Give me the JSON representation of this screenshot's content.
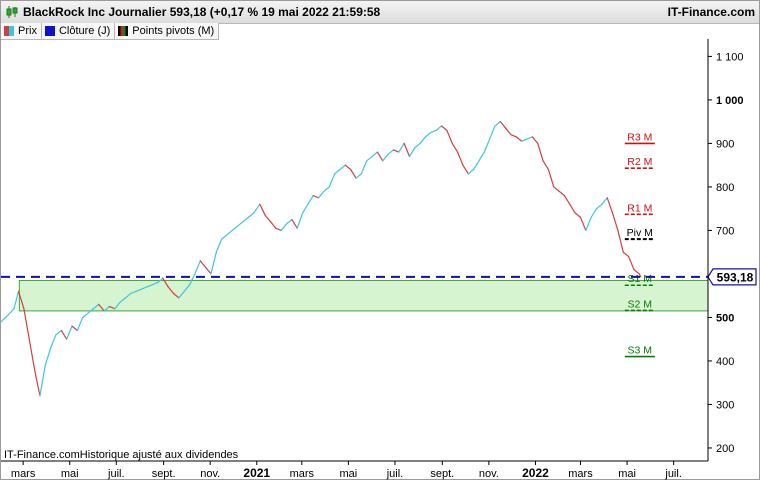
{
  "header": {
    "title": "BlackRock Inc Journalier 593,18 (+0,17 % 19 mai 2022 21:59:58",
    "brand": "IT-Finance.com",
    "icon": "candlestick-icon"
  },
  "legend": [
    {
      "label": "Prix",
      "swatch": "price-swatch"
    },
    {
      "label": "Clôture (J)",
      "swatch": "close-swatch"
    },
    {
      "label": "Points pivots (M)",
      "swatch": "pivot-swatch"
    }
  ],
  "footer": {
    "text": "IT-Finance.comHistorique ajusté aux dividendes"
  },
  "colors": {
    "price_up": "#3cc6e0",
    "price_down": "#d04040",
    "close_line": "#1010b0",
    "resistance": "#cc1111",
    "pivot": "#000000",
    "support": "#0a7a0a",
    "zone_fill": "#c8f0c0",
    "zone_border": "#3aa83a"
  },
  "chart_data": {
    "type": "line",
    "title": "BlackRock Inc Journalier",
    "ylim": [
      170,
      1140
    ],
    "y_ticks": [
      {
        "value": 1100,
        "label": "1 100",
        "bold": false
      },
      {
        "value": 1000,
        "label": "1 000",
        "bold": true
      },
      {
        "value": 900,
        "label": "900",
        "bold": false
      },
      {
        "value": 800,
        "label": "800",
        "bold": false
      },
      {
        "value": 700,
        "label": "700",
        "bold": false
      },
      {
        "value": 500,
        "label": "500",
        "bold": true
      },
      {
        "value": 400,
        "label": "400",
        "bold": false
      },
      {
        "value": 300,
        "label": "300",
        "bold": false
      },
      {
        "value": 200,
        "label": "200",
        "bold": false
      }
    ],
    "x_range": [
      "2020-02-01",
      "2022-08-15"
    ],
    "x_ticks": [
      {
        "date": "2020-03-01",
        "label": "mars",
        "bold": false
      },
      {
        "date": "2020-05-01",
        "label": "mai",
        "bold": false
      },
      {
        "date": "2020-07-01",
        "label": "juil.",
        "bold": false
      },
      {
        "date": "2020-09-01",
        "label": "sept.",
        "bold": false
      },
      {
        "date": "2020-11-01",
        "label": "nov.",
        "bold": false
      },
      {
        "date": "2021-01-01",
        "label": "2021",
        "bold": true
      },
      {
        "date": "2021-03-01",
        "label": "mars",
        "bold": false
      },
      {
        "date": "2021-05-01",
        "label": "mai",
        "bold": false
      },
      {
        "date": "2021-07-01",
        "label": "juil.",
        "bold": false
      },
      {
        "date": "2021-09-01",
        "label": "sept.",
        "bold": false
      },
      {
        "date": "2021-11-01",
        "label": "nov.",
        "bold": false
      },
      {
        "date": "2022-01-01",
        "label": "2022",
        "bold": true
      },
      {
        "date": "2022-03-01",
        "label": "mars",
        "bold": false
      },
      {
        "date": "2022-05-01",
        "label": "mai",
        "bold": false
      },
      {
        "date": "2022-07-01",
        "label": "juil.",
        "bold": false
      }
    ],
    "series": [
      {
        "name": "Prix",
        "points": [
          [
            "2020-02-01",
            490
          ],
          [
            "2020-02-10",
            505
          ],
          [
            "2020-02-18",
            520
          ],
          [
            "2020-02-24",
            560
          ],
          [
            "2020-03-02",
            520
          ],
          [
            "2020-03-09",
            450
          ],
          [
            "2020-03-16",
            380
          ],
          [
            "2020-03-23",
            320
          ],
          [
            "2020-03-30",
            390
          ],
          [
            "2020-04-06",
            430
          ],
          [
            "2020-04-13",
            460
          ],
          [
            "2020-04-20",
            470
          ],
          [
            "2020-04-27",
            450
          ],
          [
            "2020-05-04",
            480
          ],
          [
            "2020-05-11",
            470
          ],
          [
            "2020-05-18",
            500
          ],
          [
            "2020-05-25",
            510
          ],
          [
            "2020-06-01",
            520
          ],
          [
            "2020-06-08",
            530
          ],
          [
            "2020-06-15",
            515
          ],
          [
            "2020-06-22",
            525
          ],
          [
            "2020-06-29",
            520
          ],
          [
            "2020-07-06",
            535
          ],
          [
            "2020-07-13",
            545
          ],
          [
            "2020-07-20",
            555
          ],
          [
            "2020-07-27",
            560
          ],
          [
            "2020-08-03",
            565
          ],
          [
            "2020-08-10",
            570
          ],
          [
            "2020-08-17",
            575
          ],
          [
            "2020-08-24",
            580
          ],
          [
            "2020-08-31",
            590
          ],
          [
            "2020-09-07",
            570
          ],
          [
            "2020-09-14",
            555
          ],
          [
            "2020-09-21",
            545
          ],
          [
            "2020-09-28",
            560
          ],
          [
            "2020-10-05",
            575
          ],
          [
            "2020-10-12",
            600
          ],
          [
            "2020-10-19",
            630
          ],
          [
            "2020-10-26",
            615
          ],
          [
            "2020-11-02",
            600
          ],
          [
            "2020-11-09",
            650
          ],
          [
            "2020-11-16",
            680
          ],
          [
            "2020-11-23",
            690
          ],
          [
            "2020-11-30",
            700
          ],
          [
            "2020-12-07",
            710
          ],
          [
            "2020-12-14",
            720
          ],
          [
            "2020-12-21",
            730
          ],
          [
            "2020-12-28",
            740
          ],
          [
            "2021-01-05",
            760
          ],
          [
            "2021-01-12",
            735
          ],
          [
            "2021-01-19",
            720
          ],
          [
            "2021-01-26",
            705
          ],
          [
            "2021-02-02",
            700
          ],
          [
            "2021-02-09",
            715
          ],
          [
            "2021-02-16",
            725
          ],
          [
            "2021-02-23",
            705
          ],
          [
            "2021-03-02",
            740
          ],
          [
            "2021-03-09",
            760
          ],
          [
            "2021-03-16",
            780
          ],
          [
            "2021-03-23",
            775
          ],
          [
            "2021-03-30",
            790
          ],
          [
            "2021-04-06",
            800
          ],
          [
            "2021-04-13",
            830
          ],
          [
            "2021-04-20",
            840
          ],
          [
            "2021-04-27",
            850
          ],
          [
            "2021-05-04",
            840
          ],
          [
            "2021-05-11",
            820
          ],
          [
            "2021-05-18",
            830
          ],
          [
            "2021-05-25",
            860
          ],
          [
            "2021-06-01",
            870
          ],
          [
            "2021-06-08",
            880
          ],
          [
            "2021-06-15",
            860
          ],
          [
            "2021-06-22",
            875
          ],
          [
            "2021-06-29",
            885
          ],
          [
            "2021-07-06",
            880
          ],
          [
            "2021-07-13",
            900
          ],
          [
            "2021-07-20",
            870
          ],
          [
            "2021-07-27",
            890
          ],
          [
            "2021-08-03",
            900
          ],
          [
            "2021-08-10",
            915
          ],
          [
            "2021-08-17",
            925
          ],
          [
            "2021-08-24",
            930
          ],
          [
            "2021-08-31",
            940
          ],
          [
            "2021-09-07",
            930
          ],
          [
            "2021-09-14",
            900
          ],
          [
            "2021-09-21",
            880
          ],
          [
            "2021-09-28",
            850
          ],
          [
            "2021-10-05",
            830
          ],
          [
            "2021-10-12",
            840
          ],
          [
            "2021-10-19",
            860
          ],
          [
            "2021-10-26",
            880
          ],
          [
            "2021-11-02",
            910
          ],
          [
            "2021-11-09",
            940
          ],
          [
            "2021-11-16",
            950
          ],
          [
            "2021-11-23",
            935
          ],
          [
            "2021-11-30",
            920
          ],
          [
            "2021-12-07",
            915
          ],
          [
            "2021-12-14",
            905
          ],
          [
            "2021-12-21",
            910
          ],
          [
            "2021-12-28",
            915
          ],
          [
            "2022-01-04",
            900
          ],
          [
            "2022-01-11",
            860
          ],
          [
            "2022-01-18",
            840
          ],
          [
            "2022-01-25",
            800
          ],
          [
            "2022-02-01",
            790
          ],
          [
            "2022-02-08",
            780
          ],
          [
            "2022-02-15",
            760
          ],
          [
            "2022-02-22",
            740
          ],
          [
            "2022-03-01",
            730
          ],
          [
            "2022-03-08",
            700
          ],
          [
            "2022-03-15",
            730
          ],
          [
            "2022-03-22",
            750
          ],
          [
            "2022-03-29",
            760
          ],
          [
            "2022-04-05",
            775
          ],
          [
            "2022-04-12",
            740
          ],
          [
            "2022-04-19",
            700
          ],
          [
            "2022-04-26",
            650
          ],
          [
            "2022-05-03",
            640
          ],
          [
            "2022-05-10",
            610
          ],
          [
            "2022-05-17",
            600
          ],
          [
            "2022-05-19",
            593.18
          ]
        ]
      },
      {
        "name": "Clôture (J)",
        "value": 593.18,
        "label": "593,18"
      }
    ],
    "zone": {
      "low": 515,
      "high": 585,
      "from": "2020-02-25",
      "to": "2022-08-15"
    },
    "pivots": [
      {
        "label": "R3 M",
        "value": 900,
        "kind": "resistance",
        "style": "solid"
      },
      {
        "label": "R2 M",
        "value": 843,
        "kind": "resistance",
        "style": "dashed"
      },
      {
        "label": "R1 M",
        "value": 737,
        "kind": "resistance",
        "style": "dashed"
      },
      {
        "label": "Piv M",
        "value": 680,
        "kind": "pivot",
        "style": "dashed"
      },
      {
        "label": "S1 M",
        "value": 574,
        "kind": "support",
        "style": "dashed"
      },
      {
        "label": "S2 M",
        "value": 516,
        "kind": "support",
        "style": "dashed"
      },
      {
        "label": "S3 M",
        "value": 410,
        "kind": "support",
        "style": "solid"
      }
    ]
  }
}
